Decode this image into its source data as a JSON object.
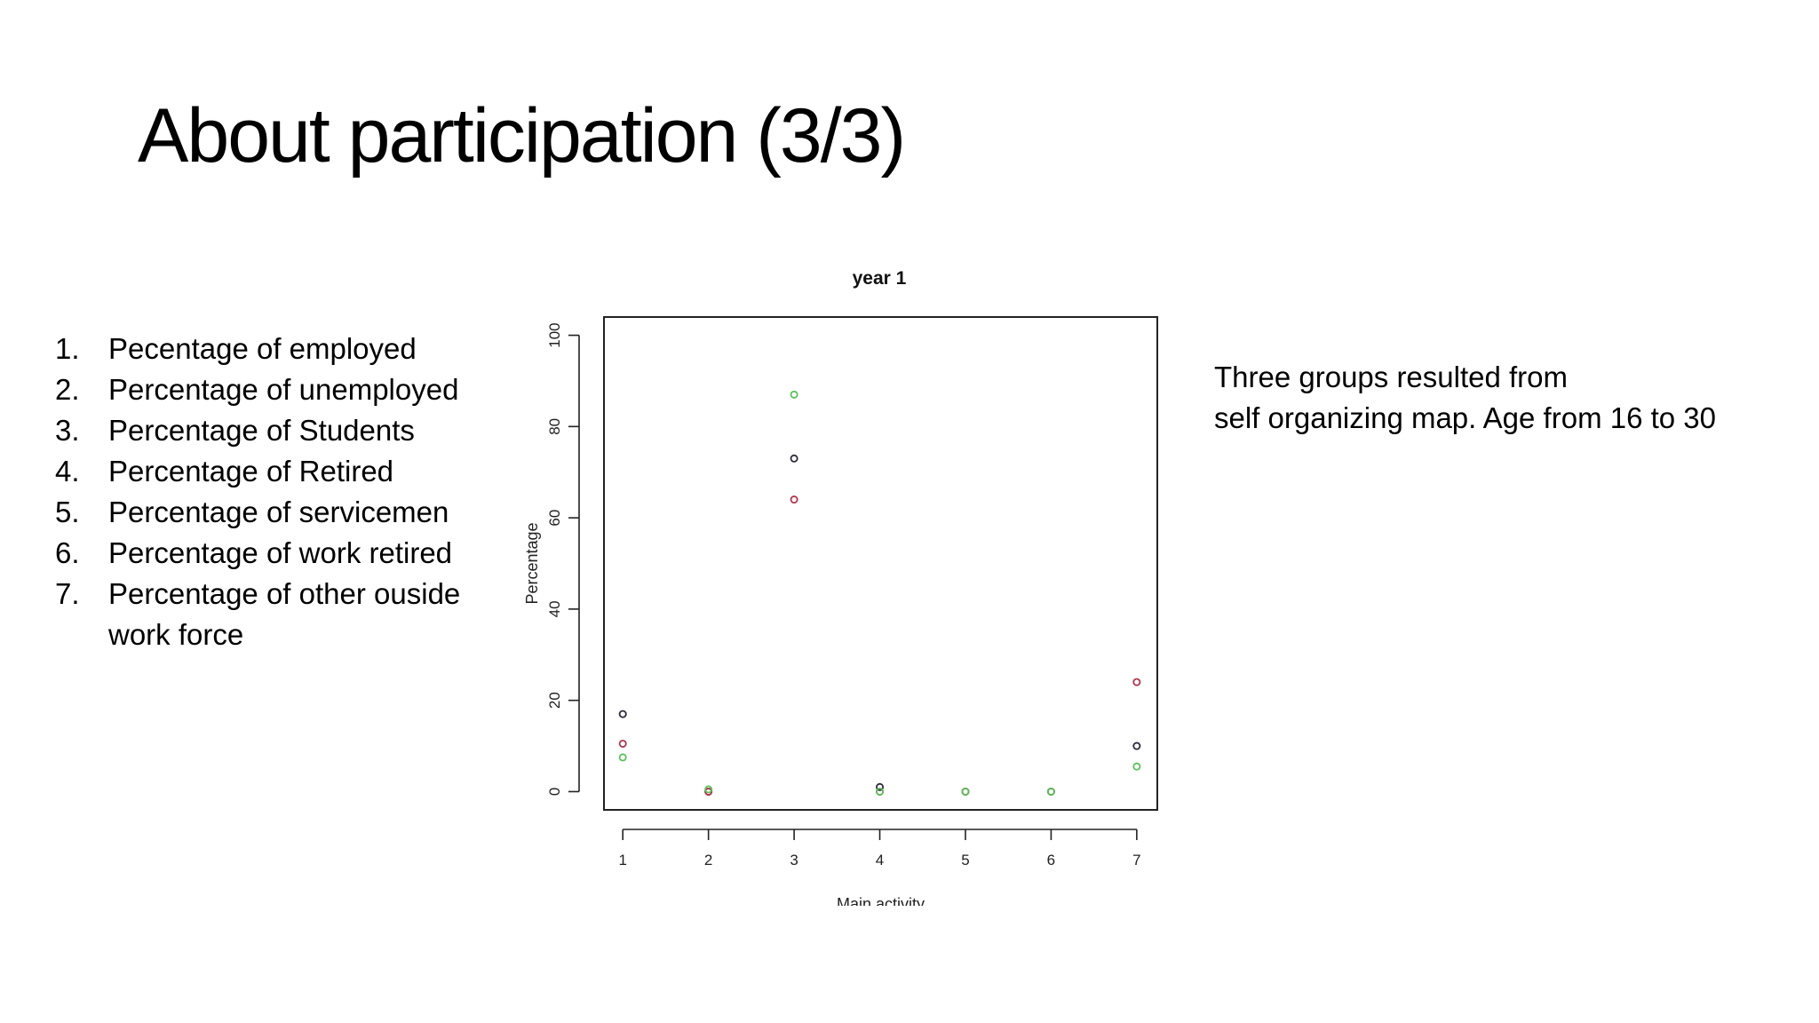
{
  "slide": {
    "title": "About participation (3/3)",
    "list": [
      {
        "num": "1.",
        "text": "Pecentage of employed"
      },
      {
        "num": "2.",
        "text": "Percentage of unemployed"
      },
      {
        "num": "3.",
        "text": "Percentage of Students"
      },
      {
        "num": "4.",
        "text": "Percentage of Retired"
      },
      {
        "num": "5.",
        "text": "Percentage of servicemen"
      },
      {
        "num": "6.",
        "text": "Percentage of work retired"
      },
      {
        "num": "7.",
        "text": "Percentage of other ouside work force"
      }
    ],
    "note_line1": "Three groups resulted from",
    "note_line2": "self organizing map. Age from 16 to 30"
  },
  "chart_data": {
    "type": "scatter",
    "title": "year 1",
    "xlabel": "Main activity",
    "ylabel": "Percentage",
    "xlim": [
      0.78,
      7.24
    ],
    "ylim": [
      -4,
      104
    ],
    "x_ticks": [
      1,
      2,
      3,
      4,
      5,
      6,
      7
    ],
    "y_ticks": [
      0,
      20,
      40,
      60,
      80,
      100
    ],
    "grid": false,
    "legend": "none",
    "x": [
      1,
      2,
      3,
      4,
      5,
      6,
      7
    ],
    "series": [
      {
        "color": "#2e2a3a",
        "values": [
          17,
          0,
          73,
          1,
          0,
          0,
          10
        ]
      },
      {
        "color": "#b0364e",
        "values": [
          10.5,
          0,
          64,
          0,
          0,
          0,
          24
        ]
      },
      {
        "color": "#5cc05c",
        "values": [
          7.5,
          0.5,
          87,
          0,
          0,
          0,
          5.5
        ]
      }
    ]
  }
}
